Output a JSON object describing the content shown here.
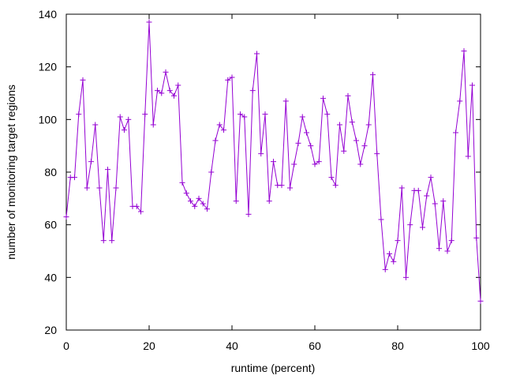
{
  "chart_data": {
    "type": "line",
    "title": "",
    "xlabel": "runtime (percent)",
    "ylabel": "number of monitoring target regions",
    "xlim": [
      0,
      100
    ],
    "ylim": [
      20,
      140
    ],
    "x_ticks": [
      0,
      20,
      40,
      60,
      80,
      100
    ],
    "y_ticks": [
      20,
      40,
      60,
      80,
      100,
      120,
      140
    ],
    "grid": false,
    "legend": "none",
    "line_color": "#9400d3",
    "marker": "plus",
    "series": [
      {
        "x": [
          0,
          1,
          2,
          3,
          4,
          5,
          6,
          7,
          8,
          9,
          10,
          11,
          12,
          13,
          14,
          15,
          16,
          17,
          18,
          19,
          20,
          21,
          22,
          23,
          24,
          25,
          26,
          27,
          28,
          29,
          30,
          31,
          32,
          33,
          34,
          35,
          36,
          37,
          38,
          39,
          40,
          41,
          42,
          43,
          44,
          45,
          46,
          47,
          48,
          49,
          50,
          51,
          52,
          53,
          54,
          55,
          56,
          57,
          58,
          59,
          60,
          61,
          62,
          63,
          64,
          65,
          66,
          67,
          68,
          69,
          70,
          71,
          72,
          73,
          74,
          75,
          76,
          77,
          78,
          79,
          80,
          81,
          82,
          83,
          84,
          85,
          86,
          87,
          88,
          89,
          90,
          91,
          92,
          93,
          94,
          95,
          96,
          97,
          98,
          99,
          100
        ],
        "y": [
          63,
          78,
          78,
          102,
          115,
          74,
          84,
          98,
          74,
          54,
          81,
          54,
          74,
          101,
          96,
          100,
          67,
          67,
          65,
          102,
          137,
          98,
          111,
          110,
          118,
          111,
          109,
          113,
          76,
          72,
          69,
          67,
          70,
          68,
          66,
          80,
          92,
          98,
          96,
          115,
          116,
          69,
          102,
          101,
          64,
          111,
          125,
          87,
          102,
          69,
          84,
          75,
          75,
          107,
          74,
          83,
          91,
          101,
          95,
          90,
          83,
          84,
          108,
          102,
          78,
          75,
          98,
          88,
          109,
          99,
          92,
          83,
          90,
          98,
          117,
          87,
          62,
          43,
          49,
          46,
          54,
          74,
          40,
          60,
          73,
          73,
          59,
          71,
          78,
          68,
          51,
          69,
          50,
          54,
          95,
          107,
          126,
          86,
          113,
          55,
          31
        ]
      }
    ]
  }
}
